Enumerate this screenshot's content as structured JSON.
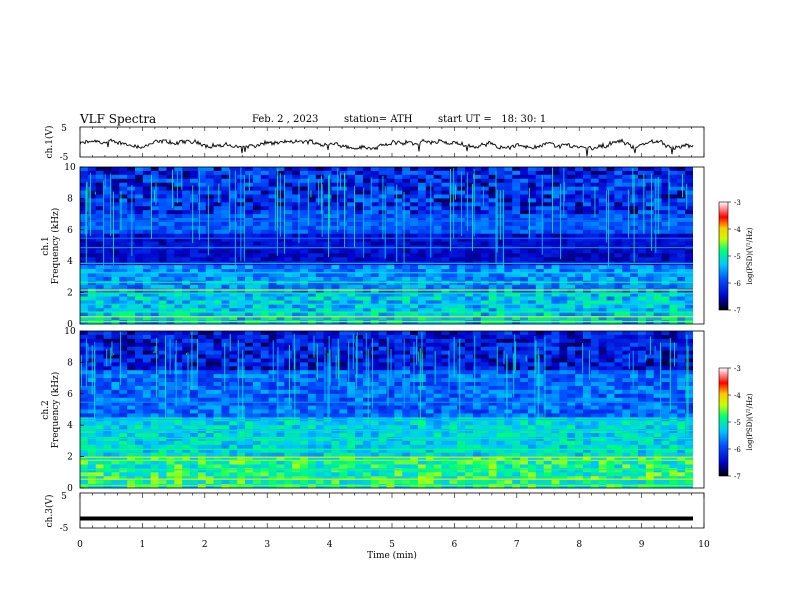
{
  "header": {
    "title": "VLF Spectra",
    "date": "Feb. 2 , 2023",
    "station": "station= ATH",
    "start": "start UT =   18: 30: 1"
  },
  "colors": {
    "colormap": [
      "#000000",
      "#0000c8",
      "#0050ff",
      "#00c8ff",
      "#00ff78",
      "#c8ff00",
      "#ffc800",
      "#ff0000",
      "#ffffff"
    ]
  },
  "chart_data": [
    {
      "type": "line",
      "name": "ch.1 waveform",
      "ylabel": "ch.1(V)",
      "ylim": [
        -5,
        5
      ],
      "yticks": [
        "5",
        "-5"
      ],
      "xlim": [
        0,
        10
      ]
    },
    {
      "type": "heatmap",
      "name": "ch.1 spectrogram",
      "ylabel": "Frequency (kHz)",
      "channel_label": "ch.1",
      "ylim": [
        0,
        10
      ],
      "yticks": [
        "0",
        "2",
        "4",
        "6",
        "8",
        "10"
      ],
      "xlim": [
        0,
        10
      ],
      "colorbar": {
        "label": "log(PSD)(V²/Hz)",
        "range": [
          -7,
          -3
        ],
        "ticks": [
          "-3",
          "-4",
          "-5",
          "-6",
          "-7"
        ]
      }
    },
    {
      "type": "heatmap",
      "name": "ch.2 spectrogram",
      "ylabel": "Frequency (kHz)",
      "channel_label": "ch.2",
      "ylim": [
        0,
        10
      ],
      "yticks": [
        "0",
        "2",
        "4",
        "6",
        "8",
        "10"
      ],
      "xlim": [
        0,
        10
      ],
      "colorbar": {
        "label": "log(PSD)(V²/Hz)",
        "range": [
          -7,
          -3
        ],
        "ticks": [
          "-3",
          "-4",
          "-5",
          "-6",
          "-7"
        ]
      }
    },
    {
      "type": "line",
      "name": "ch.3 waveform",
      "ylabel": "ch.3(V)",
      "ylim": [
        -5,
        5
      ],
      "yticks": [
        "5",
        "-5"
      ],
      "xlim": [
        0,
        10
      ],
      "xlabel": "Time (min)",
      "xticks": [
        "0",
        "1",
        "2",
        "3",
        "4",
        "5",
        "6",
        "7",
        "8",
        "9",
        "10"
      ],
      "value": -2.3
    }
  ]
}
